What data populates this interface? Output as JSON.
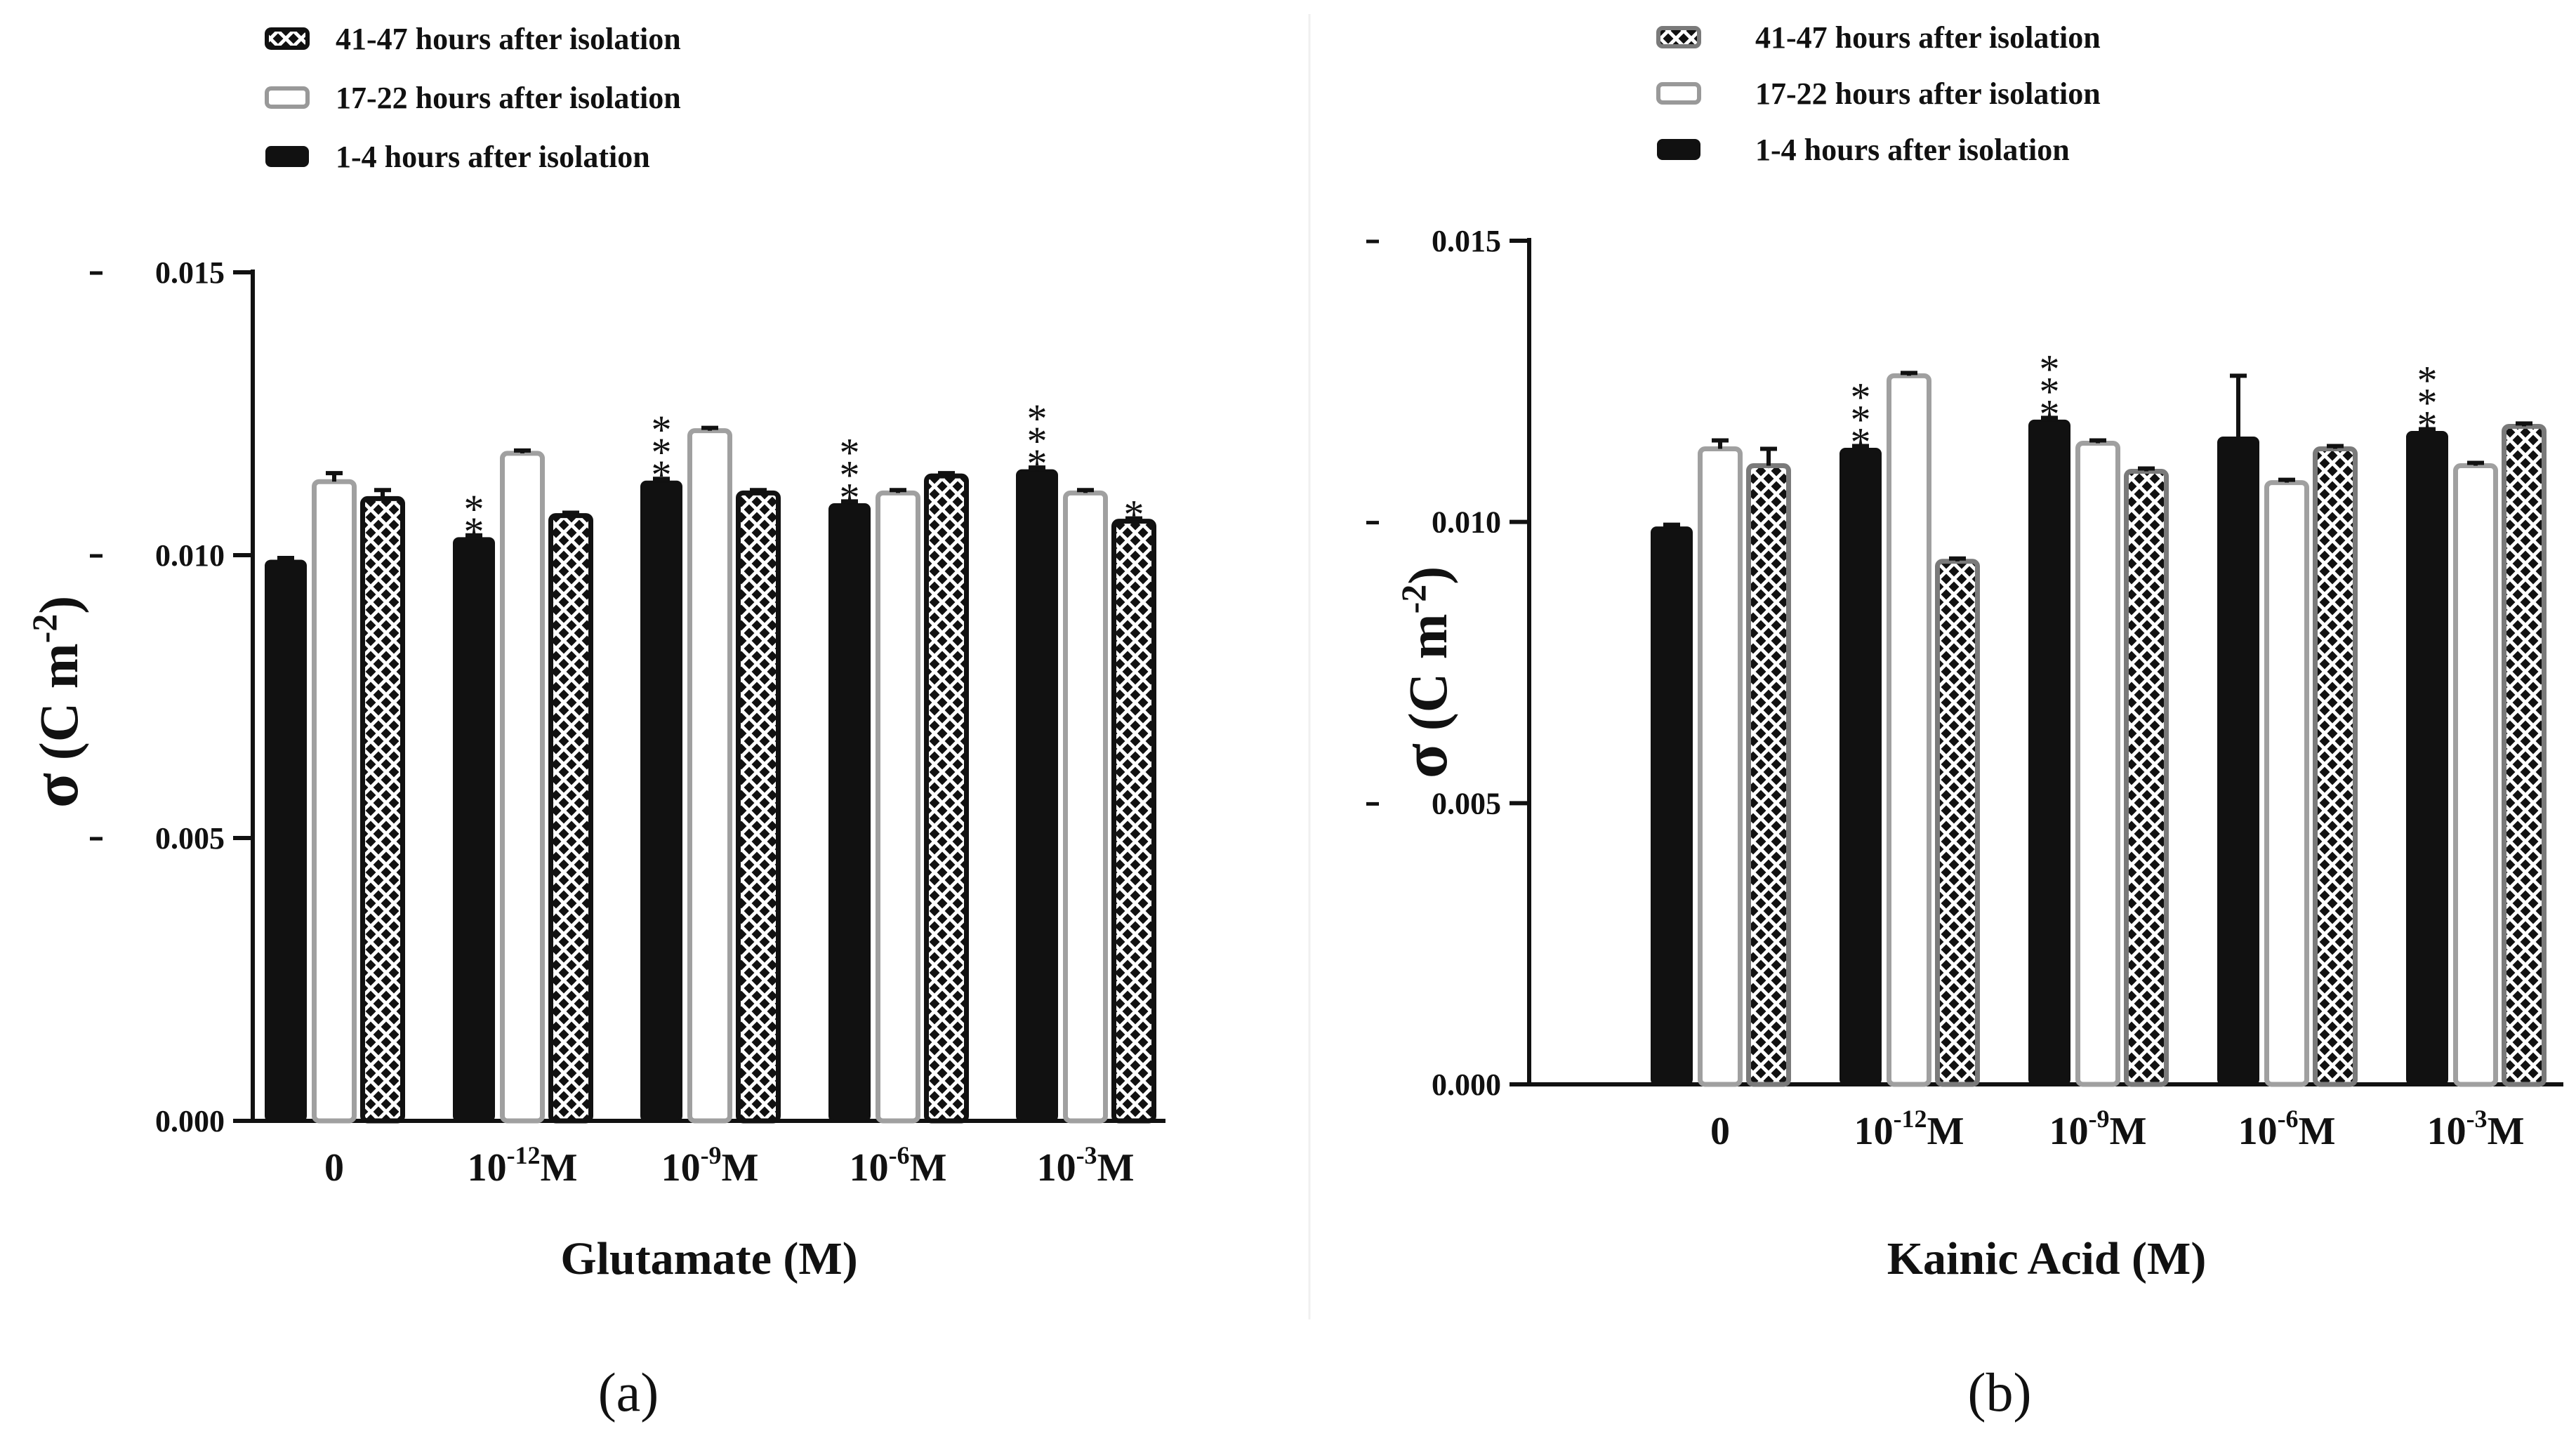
{
  "chart_data": [
    {
      "type": "bar",
      "panel_label": "(a)",
      "xlabel": "Glutamate (M)",
      "ylabel_symbol": "σ",
      "ylabel_unit": "(C m",
      "ylabel_exp": "-2",
      "ylabel_close": ")",
      "ylim": [
        0,
        0.015
      ],
      "yticks": [
        0,
        0.005,
        0.01,
        0.015
      ],
      "ytick_labels": [
        "0.000",
        "0.005",
        "0.010",
        "0.015"
      ],
      "grid": false,
      "legend_position": "top-left",
      "categories": [
        {
          "base": "0",
          "exp": "",
          "unit": ""
        },
        {
          "base": "10",
          "exp": "-12",
          "unit": "M"
        },
        {
          "base": "10",
          "exp": "-9",
          "unit": "M"
        },
        {
          "base": "10",
          "exp": "-6",
          "unit": "M"
        },
        {
          "base": "10",
          "exp": "-3",
          "unit": "M"
        }
      ],
      "legend_order": [
        2,
        1,
        0
      ],
      "series": [
        {
          "name": "1-4 hours after isolation",
          "style": "solid-black",
          "values": [
            0.0099,
            0.0103,
            0.0113,
            0.0109,
            0.0115
          ],
          "errors": [
            5e-05,
            5e-05,
            5e-05,
            5e-05,
            5e-05
          ]
        },
        {
          "name": "17-22 hours after isolation",
          "style": "open-gray",
          "values": [
            0.0113,
            0.0118,
            0.0122,
            0.0111,
            0.0111
          ],
          "errors": [
            0.00015,
            5e-05,
            5e-05,
            5e-05,
            5e-05
          ]
        },
        {
          "name": "41-47 hours after isolation",
          "style": "crosshatch-black",
          "values": [
            0.011,
            0.0107,
            0.0111,
            0.0114,
            0.0106
          ],
          "errors": [
            0.00015,
            5e-05,
            5e-05,
            5e-05,
            5e-05
          ]
        }
      ],
      "annotations": [
        {
          "series": 0,
          "category": 1,
          "text": "**"
        },
        {
          "series": 0,
          "category": 2,
          "text": "***"
        },
        {
          "series": 0,
          "category": 3,
          "text": "***"
        },
        {
          "series": 0,
          "category": 4,
          "text": "***"
        },
        {
          "series": 2,
          "category": 4,
          "text": "*"
        }
      ]
    },
    {
      "type": "bar",
      "panel_label": "(b)",
      "xlabel": "Kainic Acid (M)",
      "ylabel_symbol": "σ",
      "ylabel_unit": "(C m",
      "ylabel_exp": "-2",
      "ylabel_close": ")",
      "ylim": [
        0,
        0.015
      ],
      "yticks": [
        0,
        0.005,
        0.01,
        0.015
      ],
      "ytick_labels": [
        "0.000",
        "0.005",
        "0.010",
        "0.015"
      ],
      "grid": false,
      "legend_position": "top-left",
      "categories": [
        {
          "base": "0",
          "exp": "",
          "unit": ""
        },
        {
          "base": "10",
          "exp": "-12",
          "unit": "M"
        },
        {
          "base": "10",
          "exp": "-9",
          "unit": "M"
        },
        {
          "base": "10",
          "exp": "-6",
          "unit": "M"
        },
        {
          "base": "10",
          "exp": "-3",
          "unit": "M"
        }
      ],
      "legend_order": [
        2,
        1,
        0
      ],
      "series": [
        {
          "name": "1-4 hours after isolation",
          "style": "solid-black",
          "values": [
            0.0099,
            0.0113,
            0.0118,
            0.0115,
            0.0116
          ],
          "errors": [
            5e-05,
            5e-05,
            5e-05,
            0.0011,
            5e-05
          ]
        },
        {
          "name": "17-22 hours after isolation",
          "style": "open-gray",
          "values": [
            0.0113,
            0.0126,
            0.0114,
            0.0107,
            0.011
          ],
          "errors": [
            0.00015,
            5e-05,
            5e-05,
            5e-05,
            5e-05
          ]
        },
        {
          "name": "41-47 hours after isolation",
          "style": "crosshatch-gray",
          "values": [
            0.011,
            0.0093,
            0.0109,
            0.0113,
            0.0117
          ],
          "errors": [
            0.0003,
            5e-05,
            5e-05,
            5e-05,
            5e-05
          ]
        }
      ],
      "annotations": [
        {
          "series": 0,
          "category": 1,
          "text": "***"
        },
        {
          "series": 0,
          "category": 2,
          "text": "***"
        },
        {
          "series": 0,
          "category": 4,
          "text": "***"
        }
      ]
    }
  ]
}
